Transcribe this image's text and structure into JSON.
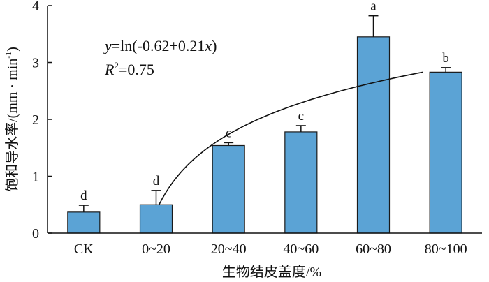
{
  "chart_data": {
    "type": "bar",
    "categories": [
      "CK",
      "0~20",
      "20~40",
      "40~60",
      "60~80",
      "80~100"
    ],
    "series": [
      {
        "values": [
          0.37,
          0.5,
          1.54,
          1.78,
          3.45,
          2.83
        ],
        "error": [
          0.12,
          0.25,
          0.05,
          0.11,
          0.37,
          0.08
        ],
        "significance": [
          "d",
          "d",
          "c",
          "c",
          "a",
          "b"
        ]
      }
    ],
    "fit": {
      "equation_y": "y",
      "equation_rhs": "=ln(-0.62+0.21",
      "equation_x": "x",
      "equation_close": ")",
      "r2_label": "R",
      "r2_sup": "2",
      "r2_value": "=0.75",
      "a": -0.62,
      "b": 0.21,
      "x_start": 0.5,
      "x_end": 2.83
    },
    "xlabel": "生物结皮盖度/%",
    "ylabel": "饱和导水率/(mm · min",
    "ylabel_sup": "-1",
    "ylabel_close": ")",
    "ylim": [
      0,
      4
    ],
    "yticks": [
      0,
      1,
      2,
      3,
      4
    ],
    "grid": false,
    "colors": {
      "bar": "#5ba3d5",
      "bar_edge": "#1a1a1a",
      "axis": "#111111",
      "curve": "#111111"
    }
  }
}
